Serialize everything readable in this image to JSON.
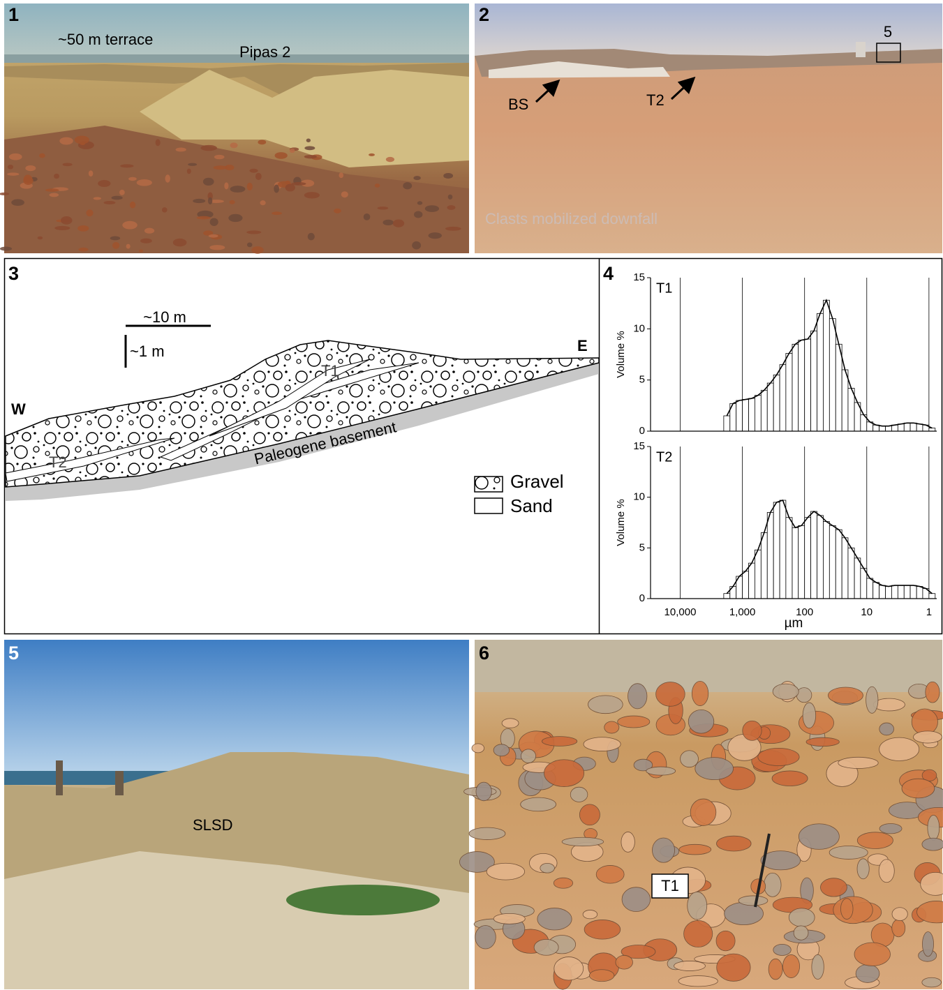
{
  "panels": [
    {
      "label": "1",
      "annotations": [
        "~50 m terrace",
        "Pipas 2"
      ]
    },
    {
      "label": "2",
      "annotations": [
        "5",
        "BS",
        "T2",
        "Clasts mobilized downfall"
      ]
    },
    {
      "label": "3",
      "scale_horizontal": "~10 m",
      "scale_vertical": "~1 m",
      "west": "W",
      "east": "E",
      "units": [
        "T1",
        "T2",
        "Paleogene basement"
      ],
      "legend": [
        "Gravel",
        "Sand"
      ]
    },
    {
      "label": "4"
    },
    {
      "label": "5",
      "annotations": [
        "SLSD"
      ]
    },
    {
      "label": "6",
      "annotations": [
        "T1"
      ]
    }
  ],
  "chart_data": [
    {
      "type": "histogram",
      "title": "T1",
      "ylabel": "Volume %",
      "color": "#ffffff",
      "log_x": true,
      "grid": true,
      "bins": [
        1995,
        1585,
        1259,
        1000,
        794,
        631,
        501,
        398,
        316,
        251,
        200,
        158,
        126,
        100,
        79.4,
        63.1,
        50.1,
        39.8,
        31.6,
        25.1,
        20,
        15.8,
        12.6,
        10,
        7.94,
        6.31,
        5.01,
        3.98,
        3.16,
        2.51,
        2,
        1.58,
        1.26,
        1,
        0.794
      ],
      "values": [
        1.5,
        2.7,
        3.0,
        3.1,
        3.2,
        3.5,
        4.0,
        4.7,
        5.5,
        6.5,
        7.6,
        8.5,
        8.9,
        9.0,
        9.8,
        11.5,
        12.8,
        11.0,
        8.5,
        6.0,
        4.2,
        2.8,
        1.6,
        0.9,
        0.6,
        0.5,
        0.5,
        0.6,
        0.7,
        0.8,
        0.8,
        0.7,
        0.6,
        0.3
      ],
      "xlim": [
        30000,
        0.75
      ],
      "xticks": [
        {
          "value": 10000,
          "label": "10,000"
        },
        {
          "value": 1000,
          "label": "1,000"
        },
        100,
        10,
        1
      ],
      "ylim": [
        0,
        15
      ],
      "yticks": [
        0,
        5,
        10,
        15
      ]
    },
    {
      "type": "histogram",
      "title": "T2",
      "xlabel": "µm",
      "ylabel": "Volume %",
      "color": "#ffffff",
      "log_x": true,
      "grid": true,
      "bins": [
        1995,
        1585,
        1259,
        1000,
        794,
        631,
        501,
        398,
        316,
        251,
        200,
        158,
        126,
        100,
        79.4,
        63.1,
        50.1,
        39.8,
        31.6,
        25.1,
        20,
        15.8,
        12.6,
        10,
        7.94,
        6.31,
        5.01,
        3.98,
        3.16,
        2.51,
        2,
        1.58,
        1.26,
        1,
        0.794
      ],
      "values": [
        0.5,
        1.2,
        2.2,
        2.7,
        3.5,
        4.8,
        6.5,
        8.5,
        9.5,
        9.7,
        8.0,
        7.0,
        7.2,
        8.0,
        8.6,
        8.2,
        7.6,
        7.2,
        6.8,
        6.0,
        5.0,
        4.0,
        3.0,
        2.0,
        1.6,
        1.3,
        1.2,
        1.3,
        1.3,
        1.3,
        1.3,
        1.2,
        1.0,
        0.5
      ],
      "xlim": [
        30000,
        0.75
      ],
      "xticks": [
        {
          "value": 10000,
          "label": "10,000"
        },
        {
          "value": 1000,
          "label": "1,000"
        },
        100,
        10,
        1
      ],
      "ylim": [
        0,
        15
      ],
      "yticks": [
        0,
        5,
        10,
        15
      ]
    }
  ]
}
